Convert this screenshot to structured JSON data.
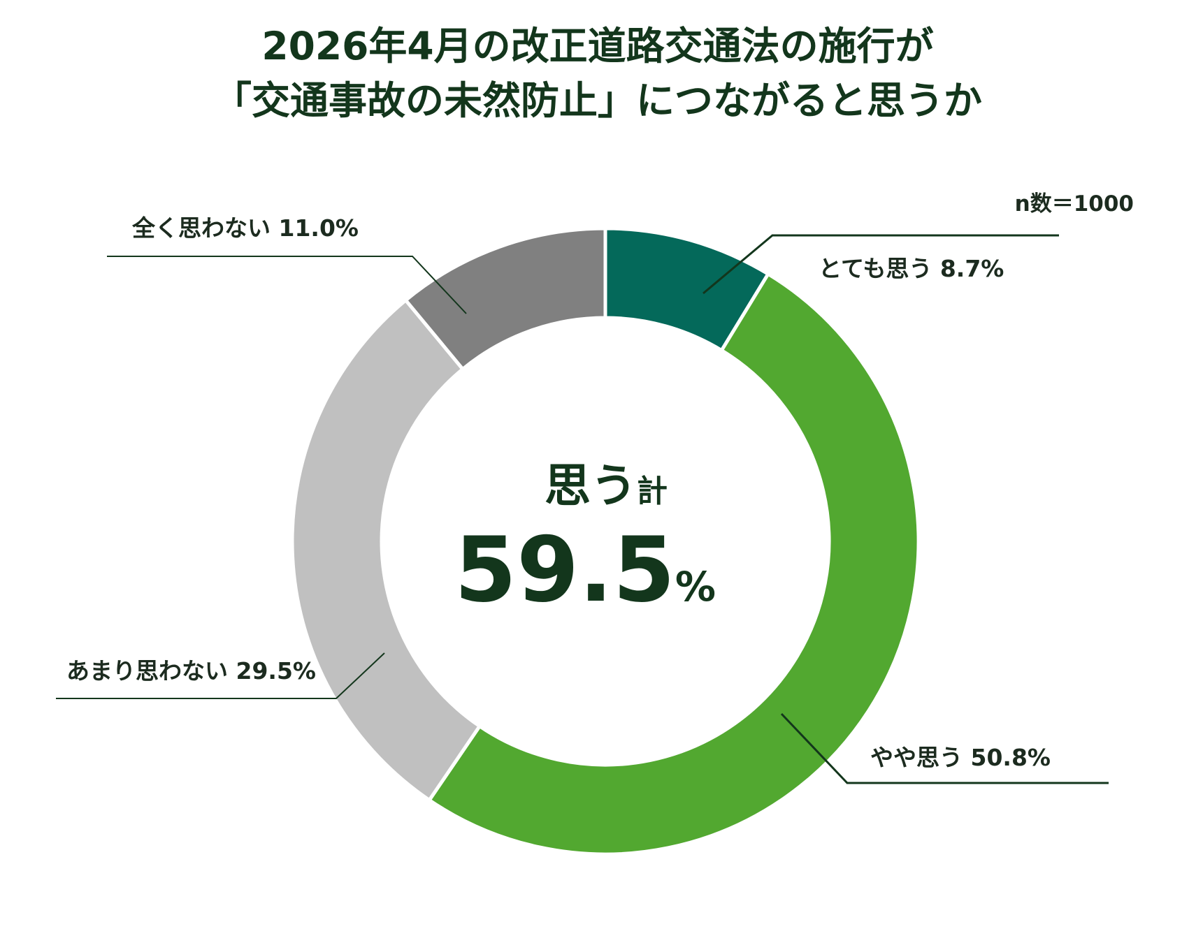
{
  "chart_data": {
    "type": "pie",
    "title_lines": [
      "2026年4月の改正道路交通法の施行が",
      "「交通事故の未然防止」につながると思うか"
    ],
    "sample_note": "n数＝1000",
    "categories": [
      "とても思う",
      "やや思う",
      "あまり思わない",
      "全く思わない"
    ],
    "values": [
      8.7,
      50.8,
      29.5,
      11.0
    ],
    "labels": [
      "とても思う 8.7%",
      "やや思う 50.8%",
      "あまり思わない 29.5%",
      "全く思わない 11.0%"
    ],
    "colors": [
      "#04695a",
      "#52a830",
      "#c0c0c0",
      "#808080"
    ],
    "center": {
      "label": "思う",
      "label_suffix": "計",
      "value": "59.5",
      "unit": "%"
    },
    "donut": true,
    "legend": "none",
    "leader_line_color": "#13361c"
  }
}
